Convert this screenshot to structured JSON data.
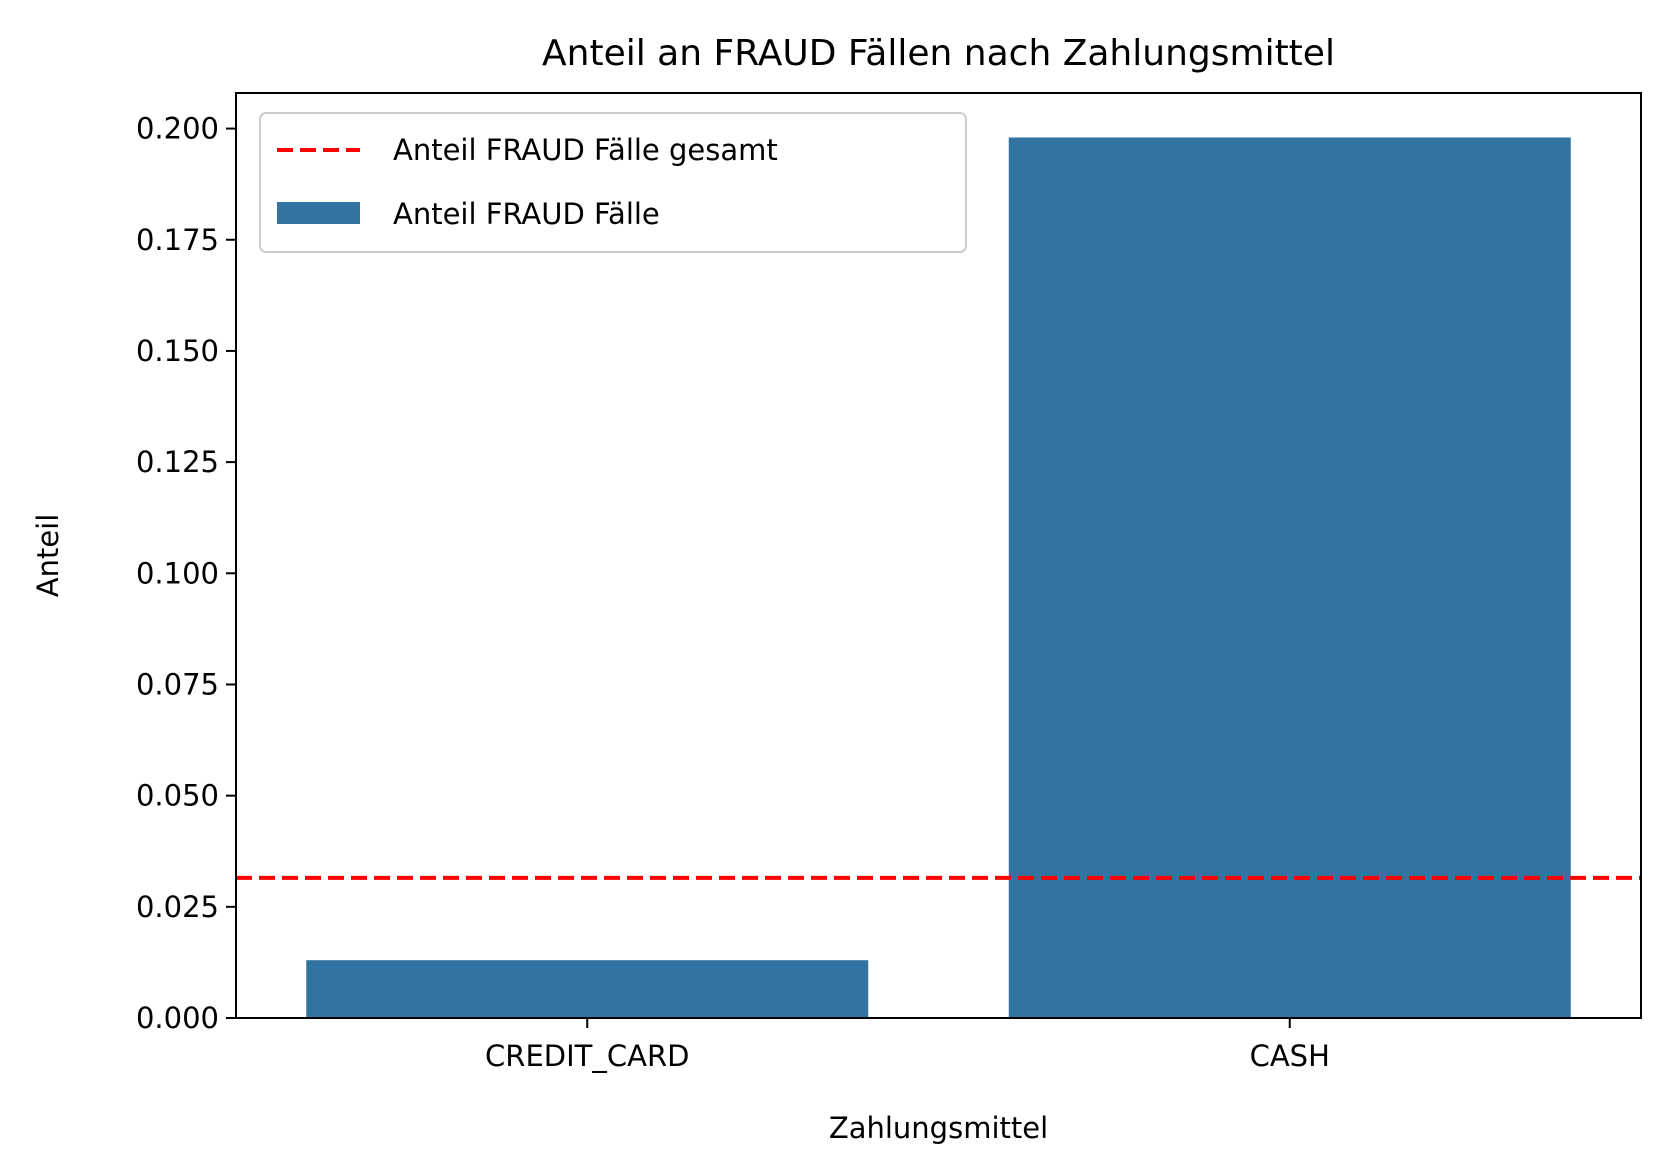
{
  "chart_data": {
    "type": "bar",
    "title": "Anteil an FRAUD Fällen nach Zahlungsmittel",
    "xlabel": "Zahlungsmittel",
    "ylabel": "Anteil",
    "categories": [
      "CREDIT_CARD",
      "CASH"
    ],
    "series": [
      {
        "name": "Anteil FRAUD Fälle",
        "values": [
          0.013,
          0.198
        ],
        "color": "#3274a1"
      }
    ],
    "reference_line": {
      "name": "Anteil FRAUD Fälle gesamt",
      "value": 0.0315,
      "color": "#ff0000",
      "style": "dashed"
    },
    "ylim": [
      0,
      0.208
    ],
    "yticks": [
      "0.000",
      "0.025",
      "0.050",
      "0.075",
      "0.100",
      "0.125",
      "0.150",
      "0.175",
      "0.200"
    ],
    "grid": false,
    "legend_position": "upper-left"
  }
}
